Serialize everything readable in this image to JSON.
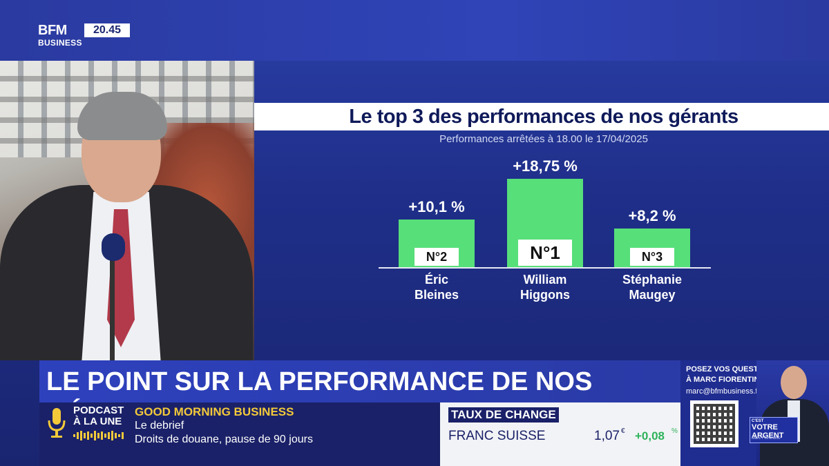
{
  "logo": {
    "brand": "BFM",
    "sub": "BUSINESS",
    "time": "20.45"
  },
  "infographic": {
    "title": "Le top 3 des performances de nos gérants",
    "subtitle": "Performances arrêtées à 18.00 le 17/04/2025",
    "bar_color": "#57df7a"
  },
  "chart_data": {
    "type": "bar",
    "title": "Le top 3 des performances de nos gérants",
    "subtitle": "Performances arrêtées à 18.00 le 17/04/2025",
    "categories": [
      "Éric Bleines",
      "William Higgons",
      "Stéphanie Maugey"
    ],
    "values": [
      10.1,
      18.75,
      8.2
    ],
    "value_labels": [
      "+10,1 %",
      "+18,75 %",
      "+8,2 %"
    ],
    "ranks": [
      "N°2",
      "N°1",
      "N°3"
    ],
    "name_lines": [
      [
        "Éric",
        "Bleines"
      ],
      [
        "William",
        "Higgons"
      ],
      [
        "Stéphanie",
        "Maugey"
      ]
    ],
    "ylim": [
      0,
      18.75
    ]
  },
  "headline": {
    "text": "LE POINT SUR LA PERFORMANCE DE NOS GÉRANTS"
  },
  "podcast": {
    "label_line1": "PODCAST",
    "label_line2": "À LA UNE",
    "show": "GOOD MORNING BUSINESS",
    "line1": "Le debrief",
    "line2": "Droits de douane, pause de 90 jours"
  },
  "fx": {
    "header": "TAUX DE CHANGE",
    "name": "FRANC SUISSE",
    "value": "1,07",
    "unit": "€",
    "change": "+0,08",
    "change_unit": "%"
  },
  "promo": {
    "line1": "POSEZ VOS QUESTIONS",
    "line2": "À MARC FIORENTINO",
    "email": "marc@bfmbusiness.fr",
    "badge_top": "C'EST",
    "badge_main": "VOTRE ARGENT",
    "badge_sign": "Marc Fiorentino"
  }
}
